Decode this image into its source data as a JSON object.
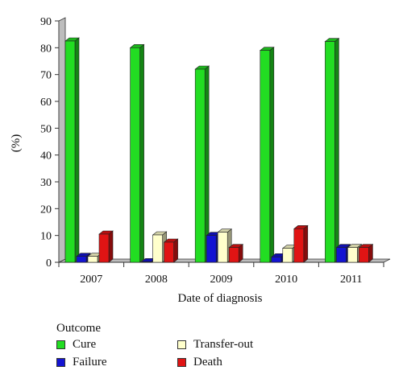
{
  "chart_data": {
    "type": "bar",
    "categories": [
      "2007",
      "2008",
      "2009",
      "2010",
      "2011"
    ],
    "series": [
      {
        "name": "Cure",
        "values": [
          82.5,
          80,
          72,
          79,
          82.3
        ],
        "color": "#22dd22"
      },
      {
        "name": "Failure",
        "values": [
          2.2,
          0.2,
          10,
          2,
          5.5
        ],
        "color": "#1414d2"
      },
      {
        "name": "Transfer-out",
        "values": [
          2.2,
          10.2,
          11.2,
          5.2,
          5.5
        ],
        "color": "#ffffcc"
      },
      {
        "name": "Death",
        "values": [
          10.5,
          7.5,
          5.5,
          12.5,
          5.5
        ],
        "color": "#e01414"
      }
    ],
    "xlabel": "Date of diagnosis",
    "ylabel": "(%)",
    "ylim": [
      0,
      90
    ],
    "yticks": [
      "0",
      "10",
      "20",
      "30",
      "40",
      "50",
      "60",
      "70",
      "80",
      "90"
    ],
    "legend_title": "Outcome",
    "legend_position": "bottom",
    "style": "3d",
    "grid": false
  }
}
